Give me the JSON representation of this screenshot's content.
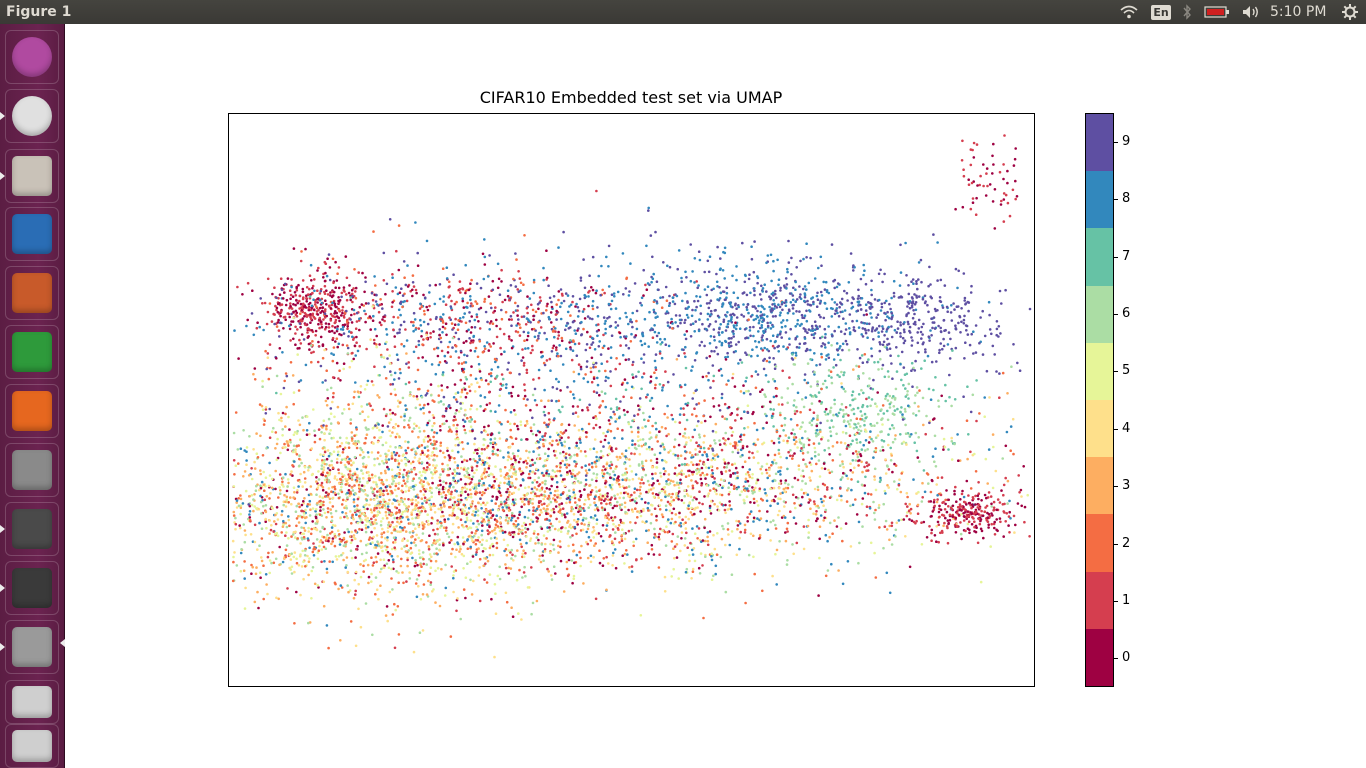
{
  "window": {
    "title": "Figure 1"
  },
  "tray": {
    "keyboard_layout": "En",
    "clock": "5:10 PM",
    "icons": [
      "wifi-icon",
      "bluetooth-icon",
      "battery-icon",
      "volume-icon",
      "settings-gear-icon"
    ],
    "battery_color": "#d02020"
  },
  "launcher": {
    "apps": [
      {
        "name": "ubuntu-dash-icon",
        "color": "#b04aa0",
        "running": false
      },
      {
        "name": "chrome-icon",
        "color": "#e0e0e0",
        "running": true
      },
      {
        "name": "files-icon",
        "color": "#c9c2b8",
        "running": true
      },
      {
        "name": "libreoffice-writer-icon",
        "color": "#2a6db5",
        "running": false
      },
      {
        "name": "libreoffice-impress-icon",
        "color": "#c85a2a",
        "running": false
      },
      {
        "name": "libreoffice-calc-icon",
        "color": "#2e9a3b",
        "running": false
      },
      {
        "name": "software-center-icon",
        "color": "#e6671f",
        "running": false
      },
      {
        "name": "system-settings-icon",
        "color": "#8a8a8a",
        "running": false
      },
      {
        "name": "sublime-text-icon",
        "color": "#4a4a4a",
        "running": true
      },
      {
        "name": "terminal-icon",
        "color": "#3a3a3a",
        "running": true
      },
      {
        "name": "help-icon",
        "color": "#9a9a9a",
        "running": true
      },
      {
        "name": "disk-drive-icon",
        "color": "#cfcfcf",
        "running": false
      },
      {
        "name": "trash-icon",
        "color": "#cfcfcf",
        "running": false
      }
    ]
  },
  "chart_data": {
    "type": "scatter",
    "title": "CIFAR10 Embedded test set via UMAP",
    "xlabel": "",
    "ylabel": "",
    "axes_ticks_visible": false,
    "grid": false,
    "point_count_approx": 10000,
    "colormap": "Spectral",
    "colorbar": {
      "ticks": [
        "0",
        "1",
        "2",
        "3",
        "4",
        "5",
        "6",
        "7",
        "8",
        "9"
      ],
      "colors": [
        "#9e0142",
        "#d53e4f",
        "#f46d43",
        "#fdae61",
        "#fee08b",
        "#e6f598",
        "#abdda4",
        "#66c2a5",
        "#3288bd",
        "#5e4fa2"
      ]
    },
    "clusters": [
      {
        "name": "upper-cluster-left",
        "classes": [
          0,
          1
        ],
        "cx": 0.11,
        "cy": 0.66,
        "sx": 0.03,
        "sy": 0.03,
        "n": 360
      },
      {
        "name": "upper-cluster-center",
        "classes": [
          8,
          9,
          0,
          1,
          2
        ],
        "cx": 0.29,
        "cy": 0.63,
        "sx": 0.14,
        "sy": 0.06,
        "n": 900
      },
      {
        "name": "upper-cluster-right",
        "classes": [
          9,
          8
        ],
        "cx": 0.66,
        "cy": 0.65,
        "sx": 0.12,
        "sy": 0.05,
        "n": 900
      },
      {
        "name": "class9-right",
        "classes": [
          9
        ],
        "cx": 0.86,
        "cy": 0.63,
        "sx": 0.06,
        "sy": 0.04,
        "n": 260
      },
      {
        "name": "class7-right",
        "classes": [
          7,
          6
        ],
        "cx": 0.78,
        "cy": 0.48,
        "sx": 0.06,
        "sy": 0.05,
        "n": 320
      },
      {
        "name": "lower-band",
        "classes": [
          1,
          2,
          3,
          4,
          5,
          6,
          8,
          0
        ],
        "cx": 0.4,
        "cy": 0.33,
        "sx": 0.28,
        "sy": 0.07,
        "n": 3800
      },
      {
        "name": "lower-left-diffuse",
        "classes": [
          3,
          4,
          5,
          6,
          2
        ],
        "cx": 0.18,
        "cy": 0.35,
        "sx": 0.1,
        "sy": 0.1,
        "n": 1200
      },
      {
        "name": "lower-right-tail",
        "classes": [
          0,
          1
        ],
        "cx": 0.92,
        "cy": 0.3,
        "sx": 0.03,
        "sy": 0.02,
        "n": 240
      },
      {
        "name": "bridge-scatter",
        "classes": [
          0,
          1,
          2,
          7,
          8,
          9
        ],
        "cx": 0.45,
        "cy": 0.48,
        "sx": 0.18,
        "sy": 0.07,
        "n": 500
      },
      {
        "name": "top-right-outliers",
        "classes": [
          1,
          0
        ],
        "cx": 0.94,
        "cy": 0.88,
        "sx": 0.025,
        "sy": 0.04,
        "n": 60
      }
    ]
  }
}
